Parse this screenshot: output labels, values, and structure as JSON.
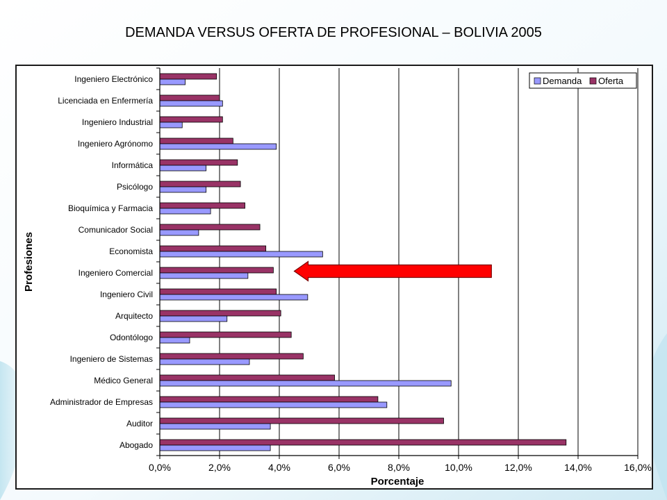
{
  "slide": {
    "title": "DEMANDA VERSUS OFERTA DE PROFESIONAL – BOLIVIA 2005"
  },
  "colors": {
    "demanda": "#9999ff",
    "oferta": "#993366",
    "arrow": "#ff0000",
    "grid": "#000000"
  },
  "chart_data": {
    "type": "bar",
    "orientation": "horizontal",
    "title": "",
    "xlabel": "Porcentaje",
    "ylabel": "Profesiones",
    "xlim": [
      0,
      16
    ],
    "x_ticks": [
      0,
      2,
      4,
      6,
      8,
      10,
      12,
      14,
      16
    ],
    "x_tick_labels": [
      "0,0%",
      "2,0%",
      "4,0%",
      "6,0%",
      "8,0%",
      "10,0%",
      "12,0%",
      "14,0%",
      "16,0%"
    ],
    "grid": true,
    "legend": {
      "position": "top-right",
      "entries": [
        "Demanda",
        "Oferta"
      ]
    },
    "categories": [
      "Ingeniero Electrónico",
      "Licenciada en Enfermería",
      "Ingeniero Industrial",
      "Ingeniero Agrónomo",
      "Informática",
      "Psicólogo",
      "Bioquímica y Farmacia",
      "Comunicador Social",
      "Economista",
      "Ingeniero Comercial",
      "Ingeniero Civil",
      "Arquitecto",
      "Odontólogo",
      "Ingeniero de Sistemas",
      "Médico General",
      "Administrador de Empresas",
      "Auditor",
      "Abogado"
    ],
    "series": [
      {
        "name": "Demanda",
        "values": [
          0.85,
          2.1,
          0.75,
          3.9,
          1.55,
          1.55,
          1.7,
          1.3,
          5.45,
          2.95,
          4.95,
          2.25,
          1.0,
          3.0,
          9.75,
          7.6,
          3.7,
          3.7
        ]
      },
      {
        "name": "Oferta",
        "values": [
          1.9,
          2.0,
          2.1,
          2.45,
          2.6,
          2.7,
          2.85,
          3.35,
          3.55,
          3.8,
          3.9,
          4.05,
          4.4,
          4.8,
          5.85,
          7.3,
          9.5,
          13.6
        ]
      }
    ],
    "annotations": [
      {
        "type": "arrow",
        "points_to": "Ingeniero Comercial",
        "from_x": 11.1,
        "to_x": 4.5
      }
    ]
  }
}
